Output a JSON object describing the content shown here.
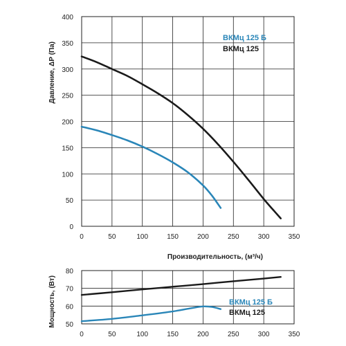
{
  "colors": {
    "blue": "#2a86b8",
    "black": "#1a1a1a",
    "grid": "#222222"
  },
  "chart_data": [
    {
      "type": "line",
      "xlabel": "Производительность, (м³/ч)",
      "ylabel": "Давление, ΔP (Па)",
      "xlim": [
        0,
        350
      ],
      "ylim": [
        0,
        400
      ],
      "x_ticks": [
        0,
        50,
        100,
        150,
        200,
        250,
        300,
        350
      ],
      "y_ticks": [
        0,
        50,
        100,
        150,
        200,
        250,
        300,
        350,
        400
      ],
      "grid": true,
      "legend_position": "top-right",
      "series": [
        {
          "name": "ВКМц 125 Б",
          "color": "#2a86b8",
          "x": [
            0,
            25,
            50,
            75,
            100,
            125,
            150,
            175,
            200,
            215,
            229
          ],
          "y": [
            190,
            183,
            174,
            164,
            152,
            138,
            122,
            103,
            78,
            58,
            35
          ]
        },
        {
          "name": "ВКМц 125",
          "color": "#1a1a1a",
          "x": [
            0,
            25,
            50,
            75,
            100,
            125,
            150,
            175,
            200,
            225,
            250,
            275,
            300,
            315,
            328
          ],
          "y": [
            324,
            313,
            300,
            287,
            271,
            254,
            235,
            212,
            186,
            156,
            123,
            88,
            52,
            32,
            15
          ]
        }
      ]
    },
    {
      "type": "line",
      "xlabel": "",
      "ylabel": "Мощность, (Вт)",
      "xlim": [
        0,
        350
      ],
      "ylim": [
        50,
        80
      ],
      "x_ticks": [
        0,
        50,
        100,
        150,
        200,
        250,
        300,
        350
      ],
      "y_ticks": [
        50,
        60,
        70,
        80
      ],
      "grid": true,
      "legend_position": "bottom-right",
      "series": [
        {
          "name": "ВКМц 125 Б",
          "color": "#2a86b8",
          "x": [
            0,
            50,
            100,
            150,
            180,
            200,
            215,
            229
          ],
          "y": [
            51.5,
            52.8,
            54.8,
            57,
            58.8,
            59.8,
            59.5,
            58.3
          ]
        },
        {
          "name": "ВКМц 125",
          "color": "#1a1a1a",
          "x": [
            0,
            50,
            100,
            150,
            200,
            250,
            300,
            328
          ],
          "y": [
            66.3,
            67.8,
            69.4,
            70.9,
            72.4,
            74,
            75.5,
            76.4
          ]
        }
      ]
    }
  ]
}
